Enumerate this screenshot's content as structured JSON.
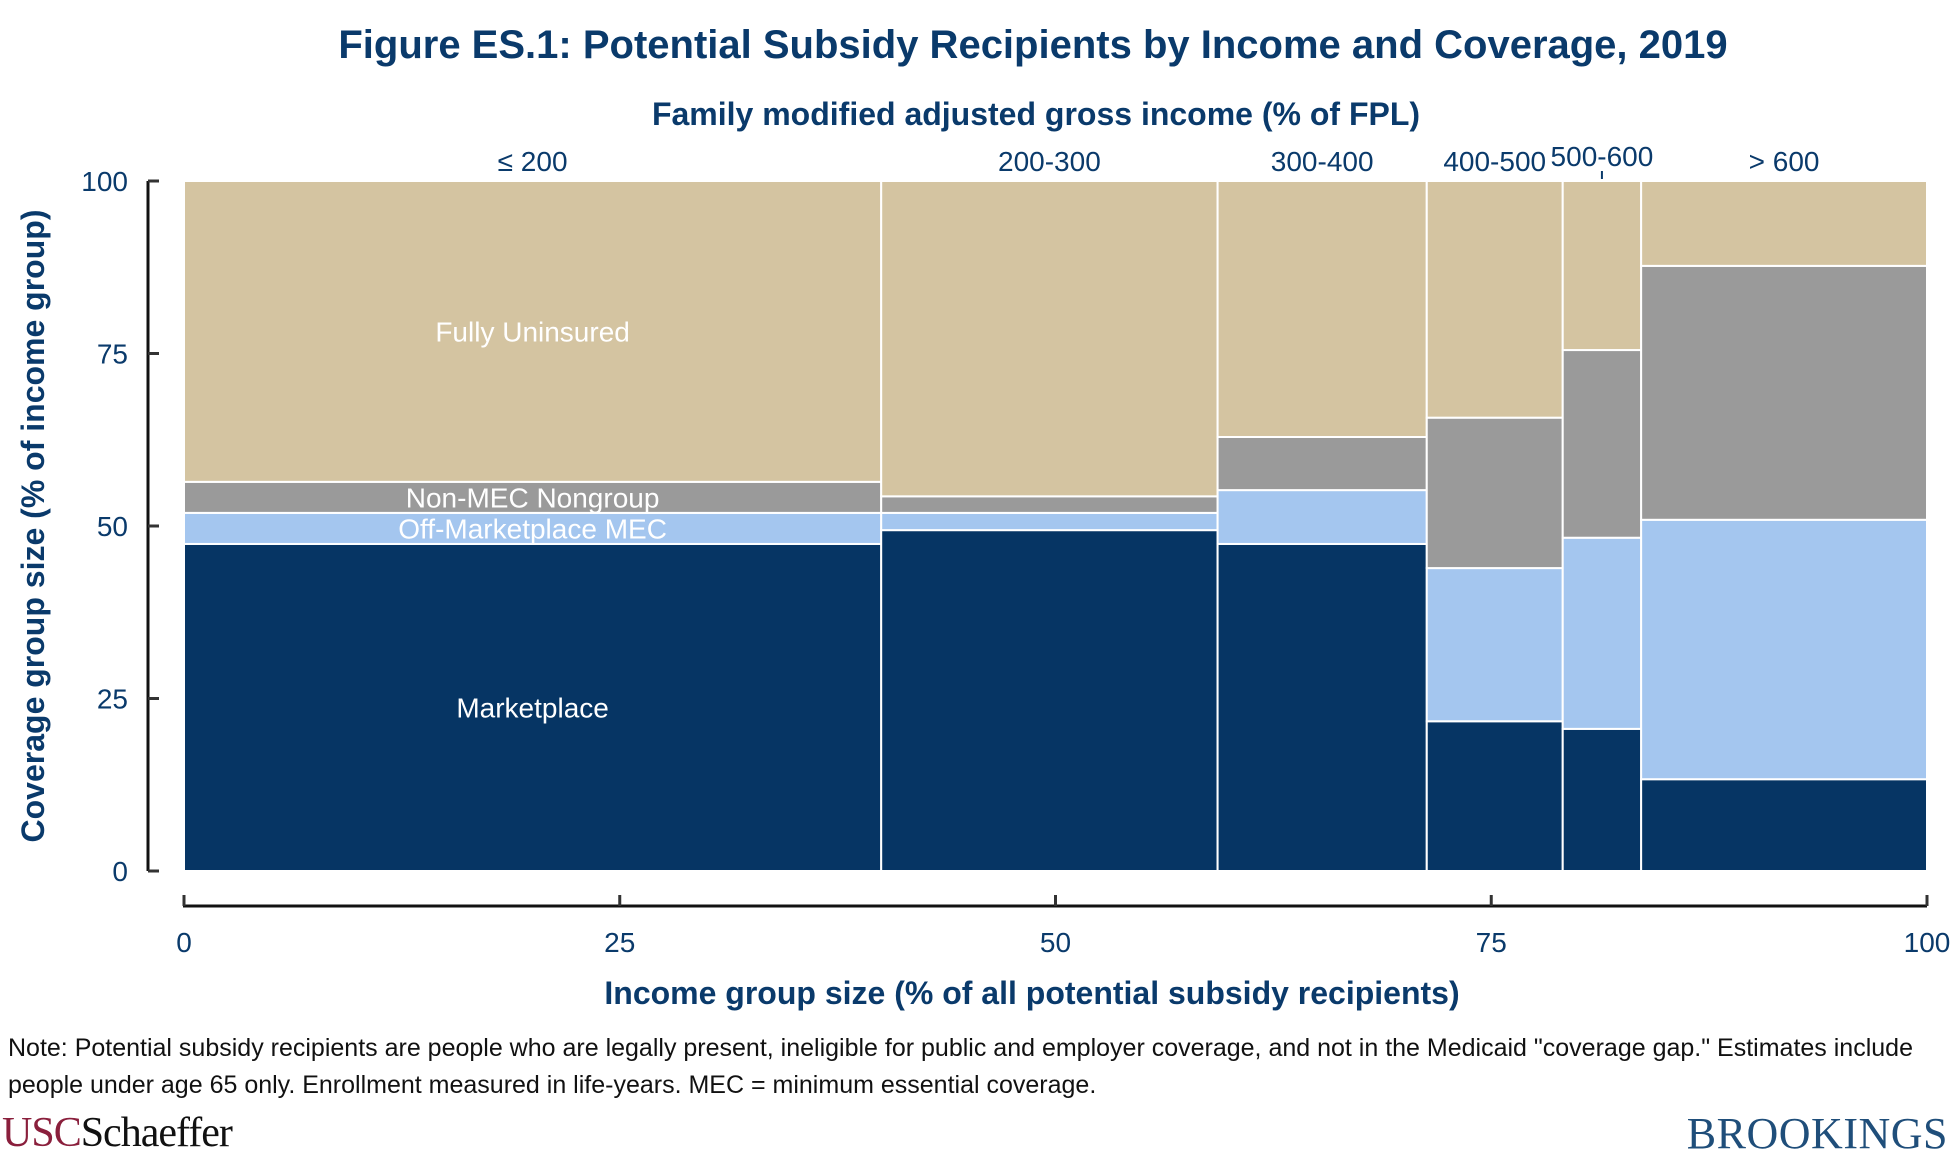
{
  "chart_data": {
    "type": "mosaic",
    "title": "Figure ES.1: Potential Subsidy Recipients by Income and Coverage, 2019",
    "top_axis_title": "Family modified adjusted gross income (% of FPL)",
    "xlabel": "Income group size (% of all potential subsidy recipients)",
    "ylabel": "Coverage group size (% of income group)",
    "xlim": [
      0,
      100
    ],
    "ylim": [
      0,
      100
    ],
    "x_ticks": [
      "0",
      "25",
      "50",
      "75",
      "100"
    ],
    "x_tick_values": [
      0,
      25,
      50,
      75,
      100
    ],
    "y_ticks": [
      "0",
      "25",
      "50",
      "75",
      "100"
    ],
    "y_tick_values": [
      0,
      25,
      50,
      75,
      100
    ],
    "grid": false,
    "categories": [
      "≤ 200",
      "200-300",
      "300-400",
      "400-500",
      "500-600",
      "> 600"
    ],
    "widths": [
      40.0,
      19.3,
      12.0,
      7.8,
      4.5,
      16.4
    ],
    "series": [
      {
        "name": "Marketplace",
        "color": "#063564",
        "values": [
          47.4,
          49.4,
          47.4,
          21.7,
          20.6,
          13.3
        ]
      },
      {
        "name": "Off-Marketplace MEC",
        "color": "#a4c6ef",
        "values": [
          4.5,
          2.5,
          7.8,
          22.2,
          27.7,
          37.6
        ]
      },
      {
        "name": "Non-MEC Nongroup",
        "color": "#9a9a9a",
        "values": [
          4.5,
          2.4,
          7.7,
          21.8,
          27.2,
          36.8
        ]
      },
      {
        "name": "Fully Uninsured",
        "color": "#d4c4a1",
        "values": [
          43.6,
          45.7,
          37.1,
          34.3,
          24.5,
          12.3
        ]
      }
    ],
    "segment_labels": {
      "column": 0,
      "labels": [
        "Marketplace",
        "Off-Marketplace MEC",
        "Non-MEC Nongroup",
        "Fully Uninsured"
      ]
    }
  },
  "note": "Note: Potential subsidy recipients are people who are legally present, ineligible for public and employer coverage, and not in the Medicaid \"coverage gap.\" Estimates include people under age 65 only. Enrollment measured in life-years. MEC = minimum essential coverage.",
  "logos": {
    "left_prefix": "USC",
    "left_suffix": "Schaeffer",
    "right": "BROOKINGS"
  },
  "colors": {
    "text_navy": "#0a3a6b",
    "axis": "#111111"
  }
}
